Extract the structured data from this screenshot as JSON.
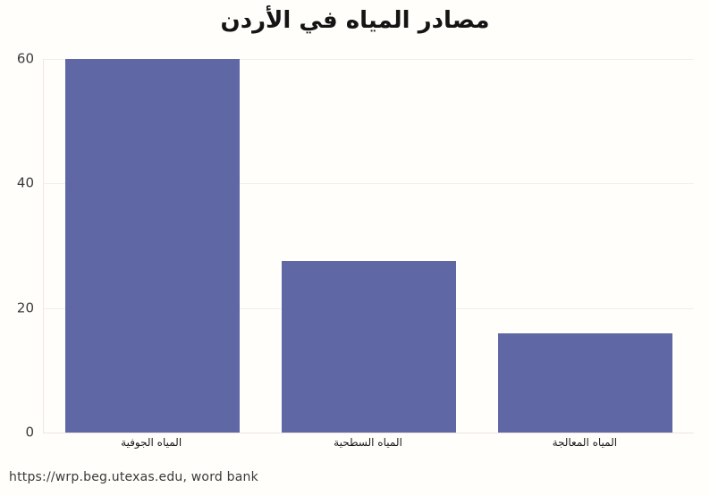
{
  "title": "مصادر المياه في الأردن",
  "source_note": "https://wrp.beg.utexas.edu, word bank",
  "y_axis": {
    "ticks": [
      "0",
      "20",
      "40",
      "60"
    ]
  },
  "chart_data": {
    "type": "bar",
    "title": "مصادر المياه في الأردن",
    "categories": [
      "المياه الجوفية",
      "المياه السطحية",
      "المياه المعالجة"
    ],
    "values": [
      60,
      27.5,
      16
    ],
    "xlabel": "",
    "ylabel": "",
    "ylim": [
      0,
      60
    ],
    "y_tick_values": [
      0,
      20,
      40,
      60
    ],
    "grid": true,
    "legend": false,
    "bar_color": "#5f67a5",
    "gridline_color": "#f5ede7",
    "background_color": "#fffefb",
    "annotation": "https://wrp.beg.utexas.edu, word bank"
  }
}
